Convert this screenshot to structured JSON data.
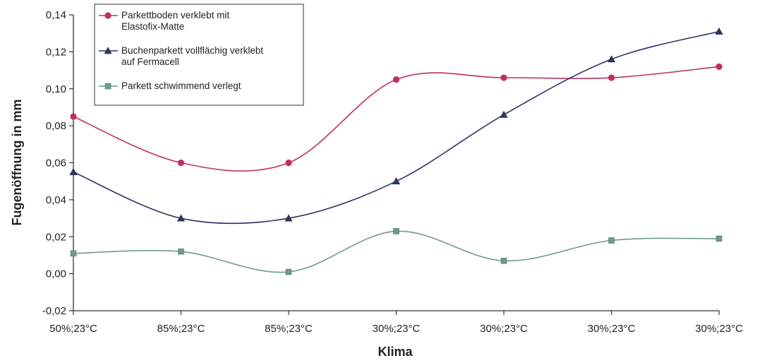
{
  "chart_data": {
    "type": "line",
    "xlabel": "Klima",
    "ylabel": "Fugenöffnung in mm",
    "categories": [
      "50%;23°C",
      "85%;23°C",
      "85%;23°C",
      "30%;23°C",
      "30%;23°C",
      "30%;23°C",
      "30%;23°C"
    ],
    "ylim": [
      -0.02,
      0.14
    ],
    "yticks": [
      "-0,02",
      "0,00",
      "0,02",
      "0,04",
      "0,06",
      "0,08",
      "0,10",
      "0,12",
      "0,14"
    ],
    "grid": false,
    "legend_position": "top-left",
    "smoothed": true,
    "series": [
      {
        "name": "Parkettboden verklebt mit Elastofix-Matte",
        "name_lines": [
          "Parkettboden verklebt mit",
          "Elastofix-Matte"
        ],
        "marker": "circle",
        "color": "#c0305a",
        "values": [
          0.085,
          0.06,
          0.06,
          0.105,
          0.106,
          0.106,
          0.112
        ]
      },
      {
        "name": "Buchenparkett vollflächig verklebt auf Fermacell",
        "name_lines": [
          "Buchenparkett vollflächig verklebt",
          "auf Fermacell"
        ],
        "marker": "triangle",
        "color": "#2e3563",
        "values": [
          0.055,
          0.03,
          0.03,
          0.05,
          0.086,
          0.116,
          0.131
        ]
      },
      {
        "name": "Parkett schwimmend verlegt",
        "name_lines": [
          "Parkett schwimmend verlegt"
        ],
        "marker": "square",
        "color": "#6f9a8a",
        "values": [
          0.011,
          0.012,
          0.001,
          0.023,
          0.007,
          0.018,
          0.019
        ]
      }
    ]
  }
}
